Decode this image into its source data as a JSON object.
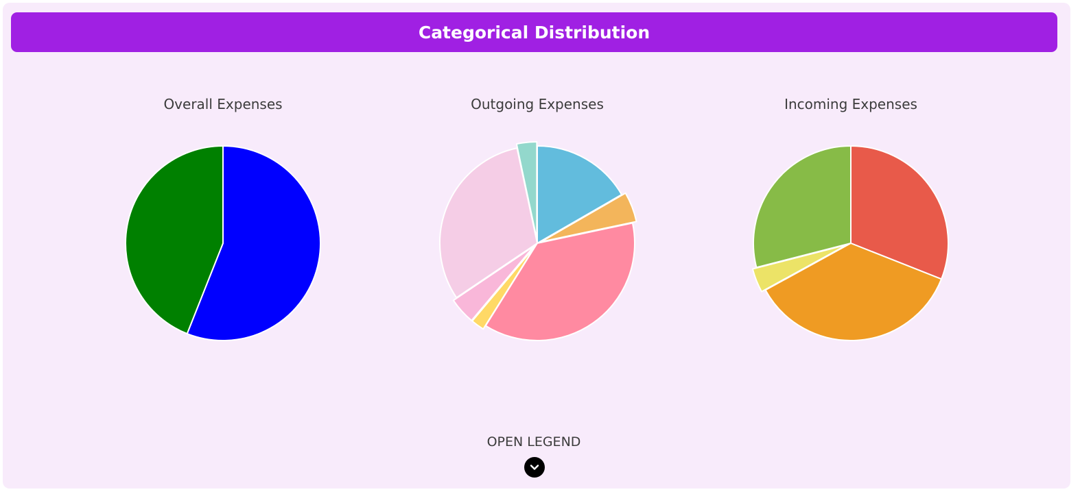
{
  "header": {
    "title": "Categorical Distribution"
  },
  "legend": {
    "label": "OPEN LEGEND",
    "icon": "chevron-down-icon"
  },
  "chart_data": [
    {
      "type": "pie",
      "title": "Overall Expenses",
      "series": [
        {
          "values": [
            56,
            44
          ],
          "colors": [
            "#0000ff",
            "#008000"
          ]
        }
      ]
    },
    {
      "type": "pie",
      "title": "Outgoing Expenses",
      "series": [
        {
          "values": [
            15,
            4.5,
            33.5,
            2,
            4,
            28,
            3
          ],
          "colors": [
            "#62bcdd",
            "#f3b55b",
            "#ff8aa1",
            "#ffd966",
            "#f9b7d9",
            "#f5cde6",
            "#93d8cc"
          ]
        }
      ]
    },
    {
      "type": "pie",
      "title": "Incoming Expenses",
      "series": [
        {
          "values": [
            31,
            36,
            4,
            29
          ],
          "colors": [
            "#e85a4a",
            "#ef9b23",
            "#ece367",
            "#87bb47"
          ]
        }
      ]
    }
  ]
}
